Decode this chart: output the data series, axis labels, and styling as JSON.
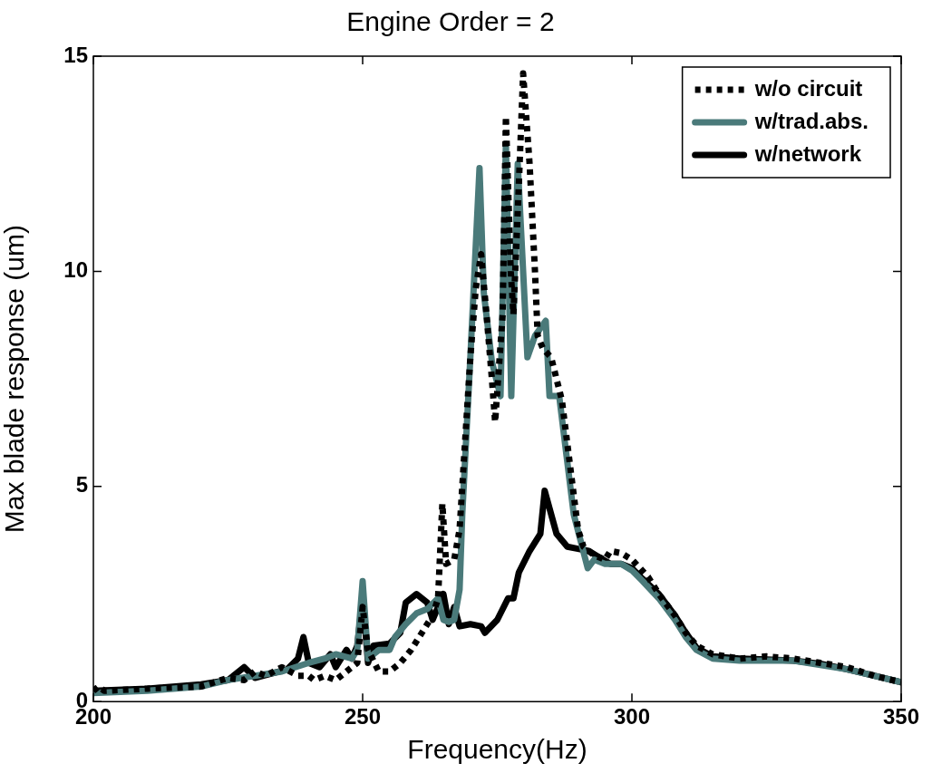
{
  "chart_data": {
    "type": "line",
    "title": "Engine Order = 2",
    "xlabel": "Frequency(Hz)",
    "ylabel": "Max blade response (um)",
    "xlim": [
      200,
      350
    ],
    "xticks": [
      200,
      250,
      300,
      350
    ],
    "ylim": [
      0,
      15
    ],
    "yticks": [
      0,
      5,
      10,
      15
    ],
    "grid": false,
    "legend": "top right",
    "marker": "none",
    "series": [
      {
        "name": "w/o circuit",
        "color": "#000000",
        "line_style": "dotted",
        "x": [
          200,
          201,
          202,
          210,
          220,
          225,
          228,
          230,
          232,
          235,
          238,
          240,
          241,
          243,
          245,
          247,
          249,
          250,
          251,
          253,
          255,
          257,
          259,
          261,
          263,
          264,
          264.8,
          265.5,
          267,
          268,
          269,
          270,
          271,
          272,
          273,
          274,
          274.6,
          276,
          276.6,
          277.5,
          278,
          279,
          279.8,
          281,
          282,
          282.5,
          283.5,
          285,
          286,
          287,
          288,
          289,
          290,
          291,
          293,
          295,
          296,
          298,
          300,
          303,
          305,
          308,
          310,
          312,
          315,
          320,
          325,
          330,
          335,
          340,
          345,
          350
        ],
        "values": [
          0.25,
          0.35,
          0.25,
          0.3,
          0.35,
          0.55,
          0.5,
          0.7,
          0.6,
          0.8,
          0.6,
          0.6,
          0.5,
          0.6,
          0.5,
          0.7,
          0.9,
          2.2,
          1.2,
          0.7,
          0.7,
          0.9,
          1.2,
          1.6,
          2.0,
          2.4,
          4.6,
          3.2,
          3.3,
          4.0,
          6.0,
          8.0,
          9.6,
          10.4,
          9.0,
          7.5,
          6.5,
          9.0,
          13.6,
          10.0,
          9.0,
          12.0,
          14.6,
          12.5,
          10.0,
          8.5,
          8.2,
          8.0,
          7.5,
          7.0,
          6.0,
          5.0,
          4.0,
          3.6,
          3.4,
          3.3,
          3.5,
          3.45,
          3.3,
          2.9,
          2.5,
          2.0,
          1.6,
          1.3,
          1.1,
          1.0,
          1.05,
          1.0,
          0.9,
          0.8,
          0.6,
          0.45
        ]
      },
      {
        "name": "w/trad.abs.",
        "color": "#4a7a7a",
        "line_style": "solid",
        "x": [
          200,
          210,
          220,
          225,
          230,
          235,
          240,
          243,
          245,
          248,
          249,
          250,
          251,
          253,
          255,
          256,
          258,
          260,
          262,
          264,
          265,
          266,
          267,
          268,
          268.5,
          270,
          271.7,
          272.5,
          274,
          275.6,
          276.6,
          277.6,
          278.8,
          280.6,
          282,
          284,
          284.7,
          286.5,
          289.2,
          291.8,
          293,
          295,
          298,
          300,
          302,
          305,
          308,
          310,
          312,
          315,
          320,
          330,
          340,
          350
        ],
        "values": [
          0.2,
          0.25,
          0.35,
          0.5,
          0.6,
          0.7,
          0.9,
          1.0,
          1.1,
          1.0,
          1.2,
          2.8,
          1.0,
          1.2,
          1.2,
          1.5,
          1.8,
          2.05,
          2.15,
          2.4,
          1.9,
          1.85,
          1.9,
          2.6,
          4.35,
          8.0,
          12.4,
          9.5,
          7.9,
          7.1,
          12.97,
          7.1,
          12.5,
          8.0,
          8.5,
          8.85,
          7.1,
          7.1,
          4.35,
          3.1,
          3.3,
          3.2,
          3.2,
          3.05,
          2.8,
          2.4,
          1.9,
          1.5,
          1.2,
          1.0,
          0.95,
          0.95,
          0.75,
          0.45
        ]
      },
      {
        "name": "w/network",
        "color": "#000000",
        "line_style": "solid",
        "x": [
          200,
          210,
          220,
          225,
          228,
          230,
          233,
          236,
          238,
          239,
          240,
          242,
          244,
          245,
          247,
          248,
          249,
          250,
          251,
          252,
          255,
          257,
          258,
          260,
          262,
          263,
          264,
          265,
          266,
          267,
          268,
          270,
          272,
          272.7,
          275,
          277,
          278,
          279,
          281,
          283,
          283.8,
          286,
          288,
          290,
          292,
          294,
          296,
          298,
          300,
          302,
          305,
          308,
          310,
          312,
          315,
          320,
          325,
          330,
          335,
          340,
          345,
          350
        ],
        "values": [
          0.25,
          0.3,
          0.4,
          0.5,
          0.8,
          0.55,
          0.65,
          0.75,
          1.0,
          1.5,
          0.9,
          0.8,
          1.1,
          0.8,
          1.2,
          1.0,
          1.3,
          2.4,
          0.9,
          1.3,
          1.35,
          1.6,
          2.3,
          2.5,
          2.3,
          1.9,
          2.2,
          2.5,
          1.8,
          2.2,
          1.75,
          1.8,
          1.75,
          1.6,
          1.9,
          2.4,
          2.4,
          3.0,
          3.5,
          3.9,
          4.9,
          3.9,
          3.6,
          3.55,
          3.5,
          3.35,
          3.2,
          3.2,
          3.1,
          2.85,
          2.5,
          2.0,
          1.6,
          1.25,
          1.05,
          1.0,
          0.98,
          0.95,
          0.88,
          0.75,
          0.6,
          0.45
        ]
      }
    ]
  }
}
